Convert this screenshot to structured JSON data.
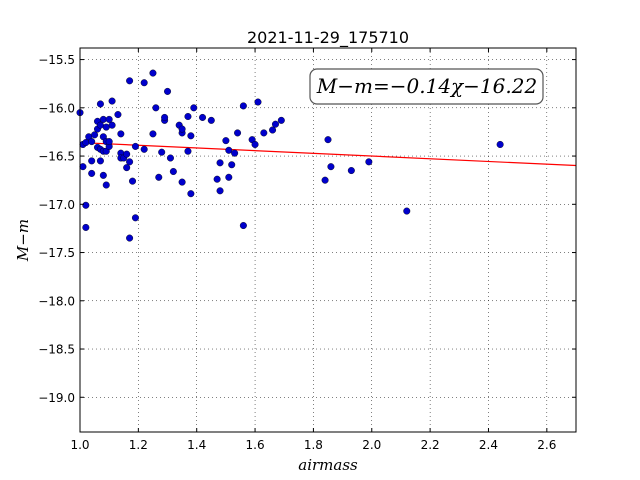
{
  "chart_data": {
    "type": "scatter",
    "title": "2021-11-29_175710",
    "xlabel": "airmass",
    "ylabel": "M−m",
    "annotation": "M−m=−0.14χ−16.22",
    "xlim": [
      1.0,
      2.7
    ],
    "ylim": [
      -19.36,
      -15.38
    ],
    "y_inverted": true,
    "grid": true,
    "xticks": [
      1.0,
      1.2,
      1.4,
      1.6,
      1.8,
      2.0,
      2.2,
      2.4,
      2.6
    ],
    "xtick_labels": [
      "1.0",
      "1.2",
      "1.4",
      "1.6",
      "1.8",
      "2.0",
      "2.2",
      "2.4",
      "2.6"
    ],
    "yticks": [
      -15.5,
      -16.0,
      -16.5,
      -17.0,
      -17.5,
      -18.0,
      -18.5,
      -19.0
    ],
    "ytick_labels": [
      "−15.5",
      "−16.0",
      "−16.5",
      "−17.0",
      "−17.5",
      "−18.0",
      "−18.5",
      "−19.0"
    ],
    "fit": {
      "slope": -0.14,
      "intercept": -16.22,
      "color": "#ff0000"
    },
    "point_color": "#0000cc",
    "points": [
      {
        "x": 1.0,
        "y": -16.05
      },
      {
        "x": 1.01,
        "y": -16.38
      },
      {
        "x": 1.01,
        "y": -16.61
      },
      {
        "x": 1.02,
        "y": -17.24
      },
      {
        "x": 1.02,
        "y": -17.01
      },
      {
        "x": 1.02,
        "y": -16.36
      },
      {
        "x": 1.03,
        "y": -16.3
      },
      {
        "x": 1.04,
        "y": -16.55
      },
      {
        "x": 1.04,
        "y": -16.68
      },
      {
        "x": 1.04,
        "y": -16.35
      },
      {
        "x": 1.05,
        "y": -16.28
      },
      {
        "x": 1.06,
        "y": -16.14
      },
      {
        "x": 1.06,
        "y": -16.22
      },
      {
        "x": 1.06,
        "y": -16.41
      },
      {
        "x": 1.07,
        "y": -16.55
      },
      {
        "x": 1.07,
        "y": -16.18
      },
      {
        "x": 1.07,
        "y": -15.96
      },
      {
        "x": 1.07,
        "y": -16.43
      },
      {
        "x": 1.08,
        "y": -16.7
      },
      {
        "x": 1.08,
        "y": -16.45
      },
      {
        "x": 1.08,
        "y": -16.12
      },
      {
        "x": 1.08,
        "y": -16.3
      },
      {
        "x": 1.09,
        "y": -16.8
      },
      {
        "x": 1.09,
        "y": -16.45
      },
      {
        "x": 1.09,
        "y": -16.35
      },
      {
        "x": 1.09,
        "y": -16.2
      },
      {
        "x": 1.1,
        "y": -16.4
      },
      {
        "x": 1.1,
        "y": -16.12
      },
      {
        "x": 1.1,
        "y": -16.35
      },
      {
        "x": 1.11,
        "y": -15.93
      },
      {
        "x": 1.11,
        "y": -16.18
      },
      {
        "x": 1.13,
        "y": -16.07
      },
      {
        "x": 1.14,
        "y": -16.27
      },
      {
        "x": 1.14,
        "y": -16.47
      },
      {
        "x": 1.14,
        "y": -16.52
      },
      {
        "x": 1.15,
        "y": -16.52
      },
      {
        "x": 1.16,
        "y": -16.48
      },
      {
        "x": 1.16,
        "y": -16.62
      },
      {
        "x": 1.17,
        "y": -16.56
      },
      {
        "x": 1.17,
        "y": -17.35
      },
      {
        "x": 1.17,
        "y": -15.72
      },
      {
        "x": 1.18,
        "y": -16.76
      },
      {
        "x": 1.19,
        "y": -17.14
      },
      {
        "x": 1.19,
        "y": -16.4
      },
      {
        "x": 1.22,
        "y": -16.43
      },
      {
        "x": 1.22,
        "y": -15.74
      },
      {
        "x": 1.25,
        "y": -15.64
      },
      {
        "x": 1.25,
        "y": -16.27
      },
      {
        "x": 1.26,
        "y": -16.0
      },
      {
        "x": 1.27,
        "y": -16.72
      },
      {
        "x": 1.28,
        "y": -16.46
      },
      {
        "x": 1.29,
        "y": -16.13
      },
      {
        "x": 1.29,
        "y": -16.1
      },
      {
        "x": 1.3,
        "y": -15.83
      },
      {
        "x": 1.31,
        "y": -16.52
      },
      {
        "x": 1.32,
        "y": -16.66
      },
      {
        "x": 1.34,
        "y": -16.18
      },
      {
        "x": 1.35,
        "y": -16.26
      },
      {
        "x": 1.35,
        "y": -16.22
      },
      {
        "x": 1.35,
        "y": -16.77
      },
      {
        "x": 1.37,
        "y": -16.09
      },
      {
        "x": 1.37,
        "y": -16.45
      },
      {
        "x": 1.38,
        "y": -16.89
      },
      {
        "x": 1.38,
        "y": -16.29
      },
      {
        "x": 1.39,
        "y": -16.0
      },
      {
        "x": 1.42,
        "y": -16.1
      },
      {
        "x": 1.45,
        "y": -16.13
      },
      {
        "x": 1.47,
        "y": -16.74
      },
      {
        "x": 1.48,
        "y": -16.86
      },
      {
        "x": 1.48,
        "y": -16.57
      },
      {
        "x": 1.5,
        "y": -16.34
      },
      {
        "x": 1.51,
        "y": -16.44
      },
      {
        "x": 1.51,
        "y": -16.72
      },
      {
        "x": 1.52,
        "y": -16.59
      },
      {
        "x": 1.53,
        "y": -16.47
      },
      {
        "x": 1.54,
        "y": -16.26
      },
      {
        "x": 1.56,
        "y": -15.98
      },
      {
        "x": 1.56,
        "y": -17.22
      },
      {
        "x": 1.59,
        "y": -16.33
      },
      {
        "x": 1.6,
        "y": -16.38
      },
      {
        "x": 1.61,
        "y": -15.94
      },
      {
        "x": 1.63,
        "y": -16.26
      },
      {
        "x": 1.66,
        "y": -16.23
      },
      {
        "x": 1.67,
        "y": -16.17
      },
      {
        "x": 1.69,
        "y": -16.13
      },
      {
        "x": 1.84,
        "y": -16.75
      },
      {
        "x": 1.85,
        "y": -16.33
      },
      {
        "x": 1.86,
        "y": -16.61
      },
      {
        "x": 1.93,
        "y": -16.65
      },
      {
        "x": 1.99,
        "y": -16.56
      },
      {
        "x": 2.12,
        "y": -17.07
      },
      {
        "x": 2.44,
        "y": -16.38
      }
    ]
  }
}
